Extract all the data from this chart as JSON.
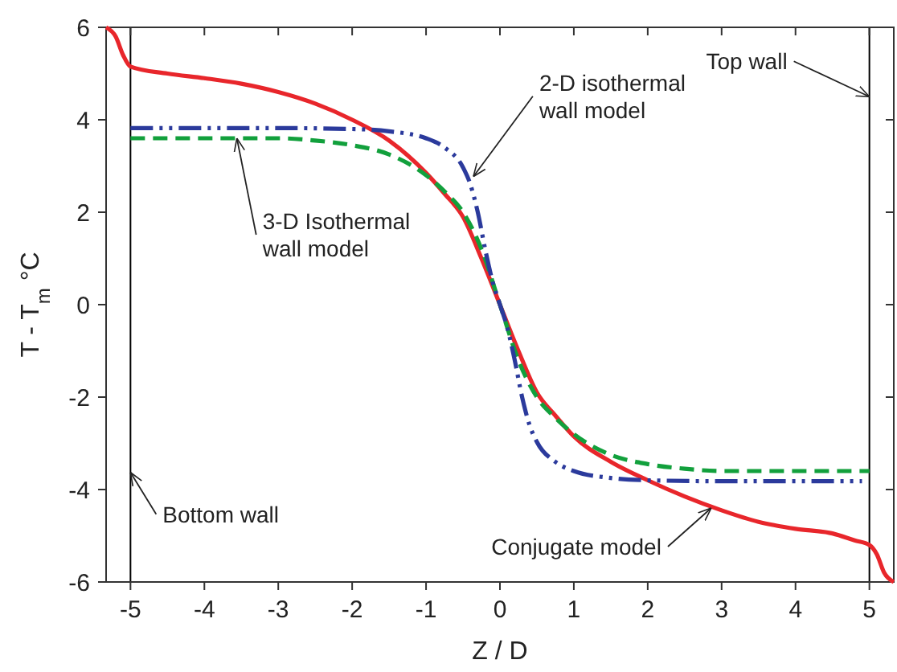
{
  "chart_data": {
    "type": "line",
    "xlabel": "Z / D",
    "ylabel": "T - T$_{m}$ °C",
    "xlim": [
      -5.33,
      5.33
    ],
    "ylim": [
      -6,
      6
    ],
    "xticks": [
      -5,
      -4,
      -3,
      -2,
      -1,
      0,
      1,
      2,
      3,
      4,
      5
    ],
    "yticks": [
      -6,
      -4,
      -2,
      0,
      2,
      4,
      6
    ],
    "grid": false,
    "series": [
      {
        "color": "#e8262b",
        "line_style": "solid",
        "x": [
          -5.33,
          -5.2,
          -5.1,
          -5,
          -4.5,
          -4,
          -3.5,
          -3,
          -2.5,
          -2,
          -1.5,
          -1,
          -0.75,
          -0.5,
          -0.25,
          0,
          0.25,
          0.5,
          0.75,
          1,
          1.5,
          2,
          2.5,
          3,
          3.5,
          4,
          4.5,
          4.8,
          5,
          5.1,
          5.2,
          5.33
        ],
        "values": [
          6,
          5.8,
          5.4,
          5.15,
          5.0,
          4.9,
          4.78,
          4.6,
          4.35,
          4.0,
          3.55,
          2.85,
          2.4,
          1.9,
          1.0,
          0,
          -1.0,
          -1.9,
          -2.4,
          -2.85,
          -3.4,
          -3.8,
          -4.15,
          -4.45,
          -4.7,
          -4.85,
          -4.95,
          -5.1,
          -5.2,
          -5.4,
          -5.8,
          -6
        ]
      },
      {
        "color": "#12a03c",
        "line_style": "dashed",
        "x": [
          -5,
          -4,
          -3,
          -2.5,
          -2,
          -1.5,
          -1,
          -0.75,
          -0.5,
          -0.25,
          0,
          0.25,
          0.5,
          0.75,
          1,
          1.5,
          2,
          2.5,
          3,
          4,
          5
        ],
        "values": [
          3.6,
          3.6,
          3.6,
          3.55,
          3.45,
          3.25,
          2.8,
          2.45,
          2.0,
          1.2,
          0,
          -1.2,
          -2.0,
          -2.45,
          -2.8,
          -3.25,
          -3.45,
          -3.55,
          -3.6,
          -3.6,
          -3.6
        ]
      },
      {
        "color": "#2b3a9c",
        "line_style": "dashdot",
        "x": [
          -5,
          -4,
          -3,
          -2,
          -1.5,
          -1,
          -0.75,
          -0.5,
          -0.4,
          -0.3,
          -0.2,
          -0.1,
          0,
          0.1,
          0.2,
          0.3,
          0.4,
          0.5,
          0.75,
          1,
          1.5,
          2,
          3,
          4,
          4.9
        ],
        "values": [
          3.82,
          3.82,
          3.82,
          3.8,
          3.75,
          3.6,
          3.4,
          2.97,
          2.6,
          2.0,
          1.2,
          0.5,
          0,
          -0.5,
          -1.2,
          -2.0,
          -2.6,
          -2.97,
          -3.4,
          -3.6,
          -3.75,
          -3.8,
          -3.82,
          -3.82,
          -3.82
        ]
      }
    ],
    "ref_lines": [
      {
        "axis": "x",
        "value": -5,
        "color": "#000000"
      },
      {
        "axis": "x",
        "value": 5,
        "color": "#000000"
      }
    ],
    "annotations": [
      {
        "text": "Top wall",
        "x": 5,
        "y": 4.5
      },
      {
        "text": "2-D isothermal\nwall model",
        "x": -0.36,
        "y": 2.77
      },
      {
        "text": "3-D Isothermal\nwall model",
        "x": -3.56,
        "y": 3.6
      },
      {
        "text": "Bottom wall",
        "x": -5,
        "y": -3.63
      },
      {
        "text": "Conjugate model",
        "x": 2.86,
        "y": -4.4
      }
    ]
  }
}
